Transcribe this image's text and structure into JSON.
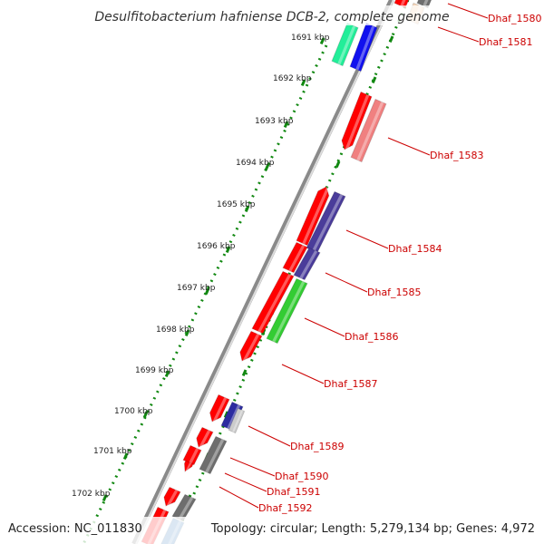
{
  "title": "Desulfitobacterium hafniense DCB-2, complete genome",
  "kbp_ticks": [
    {
      "label": "1691 kbp"
    },
    {
      "label": "1692 kbp"
    },
    {
      "label": "1693 kbp"
    },
    {
      "label": "1694 kbp"
    },
    {
      "label": "1695 kbp"
    },
    {
      "label": "1696 kbp"
    },
    {
      "label": "1697 kbp"
    },
    {
      "label": "1698 kbp"
    },
    {
      "label": "1699 kbp"
    },
    {
      "label": "1700 kbp"
    },
    {
      "label": "1701 kbp"
    },
    {
      "label": "1702 kbp"
    }
  ],
  "gene_labels": [
    {
      "label": "Dhaf_1580"
    },
    {
      "label": "Dhaf_1581"
    },
    {
      "label": "Dhaf_1583"
    },
    {
      "label": "Dhaf_1584"
    },
    {
      "label": "Dhaf_1585"
    },
    {
      "label": "Dhaf_1586"
    },
    {
      "label": "Dhaf_1587"
    },
    {
      "label": "Dhaf_1589"
    },
    {
      "label": "Dhaf_1590"
    },
    {
      "label": "Dhaf_1591"
    },
    {
      "label": "Dhaf_1592"
    }
  ],
  "footer": {
    "accession": "Accession: NC_011830",
    "stats": "Topology: circular; Length: 5,279,134 bp; Genes: 4,972"
  },
  "colors": {
    "red": "#ff0000",
    "pink": "#f08080",
    "green": "#33cc33",
    "aqua": "#22ee99",
    "blue": "#1010ee",
    "navy": "#2c2ca0",
    "purple": "#4a3c9a",
    "gray": "#6e6e6e",
    "steel": "#4a86c0",
    "label_red": "#cc0000",
    "dot_green": "#118811"
  }
}
